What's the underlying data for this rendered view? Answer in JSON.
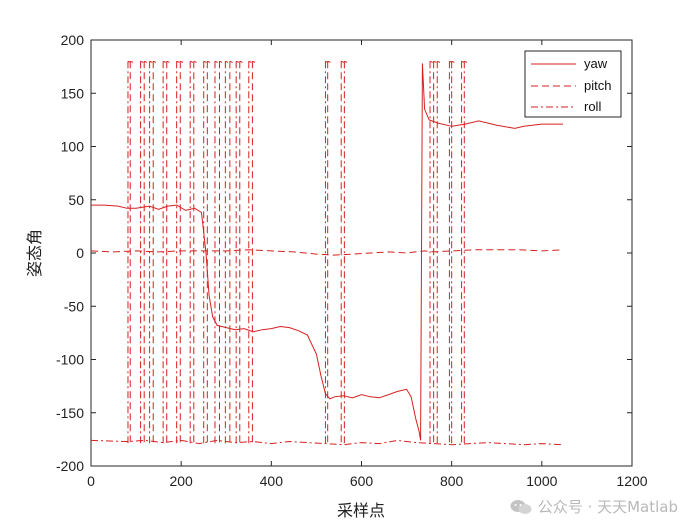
{
  "chart_data": {
    "type": "line",
    "title": "",
    "xlabel": "采样点",
    "ylabel": "姿态角",
    "xlim": [
      0,
      1200
    ],
    "ylim": [
      -200,
      200
    ],
    "xticks": [
      0,
      200,
      400,
      600,
      800,
      1000,
      1200
    ],
    "yticks": [
      -200,
      -150,
      -100,
      -50,
      0,
      50,
      100,
      150,
      200
    ],
    "grid": false,
    "legend_position": "top-right",
    "line_color": "#d62020",
    "series": [
      {
        "name": "yaw",
        "style": "solid",
        "x": [
          0,
          30,
          60,
          80,
          100,
          130,
          150,
          170,
          190,
          210,
          230,
          245,
          255,
          262,
          270,
          280,
          300,
          320,
          340,
          360,
          380,
          400,
          420,
          440,
          460,
          480,
          500,
          510,
          520,
          530,
          540,
          560,
          580,
          600,
          620,
          640,
          660,
          680,
          700,
          710,
          720,
          728,
          731,
          733,
          735,
          740,
          750,
          770,
          800,
          830,
          860,
          900,
          940,
          960,
          1000,
          1047
        ],
        "y": [
          45,
          45,
          44,
          42,
          42,
          44,
          41,
          44,
          45,
          40,
          42,
          38,
          0,
          -40,
          -60,
          -68,
          -70,
          -72,
          -71,
          -74,
          -72,
          -71,
          -69,
          -70,
          -73,
          -77,
          -95,
          -115,
          -132,
          -137,
          -135,
          -134,
          -136,
          -133,
          -135,
          -136,
          -133,
          -130,
          -128,
          -135,
          -155,
          -168,
          -176,
          0,
          178,
          135,
          125,
          122,
          119,
          121,
          124,
          120,
          117,
          119,
          121,
          121
        ]
      },
      {
        "name": "pitch",
        "style": "dashed",
        "x": [
          0,
          50,
          100,
          150,
          200,
          250,
          300,
          350,
          400,
          450,
          500,
          540,
          580,
          620,
          660,
          700,
          720,
          740,
          760,
          800,
          850,
          900,
          950,
          1000,
          1047
        ],
        "y": [
          2,
          1,
          2,
          1,
          2,
          2,
          2,
          3,
          2,
          1,
          -1,
          -2,
          -1,
          0,
          1,
          0,
          1,
          2,
          1,
          2,
          3,
          3,
          3,
          2,
          3
        ]
      },
      {
        "name": "roll",
        "style": "dashdot",
        "x": [
          0,
          80,
          120,
          160,
          200,
          240,
          280,
          320,
          360,
          400,
          440,
          480,
          520,
          560,
          600,
          640,
          680,
          720,
          760,
          800,
          840,
          880,
          920,
          960,
          1000,
          1047
        ],
        "y": [
          -176,
          -177,
          -176,
          -178,
          -176,
          -179,
          -176,
          -178,
          -177,
          -179,
          -177,
          -178,
          -179,
          -180,
          -178,
          -179,
          -176,
          -178,
          -179,
          -180,
          -179,
          -178,
          -179,
          -180,
          -179,
          -180
        ]
      }
    ],
    "wrap_jumps": [
      {
        "x": 82,
        "series": "roll"
      },
      {
        "x": 87,
        "series": "pitch"
      },
      {
        "x": 110,
        "series": "roll"
      },
      {
        "x": 118,
        "series": "pitch"
      },
      {
        "x": 130,
        "series": "roll"
      },
      {
        "x": 138,
        "series": "pitch"
      },
      {
        "x": 160,
        "series": "roll"
      },
      {
        "x": 168,
        "series": "pitch"
      },
      {
        "x": 190,
        "series": "roll"
      },
      {
        "x": 198,
        "series": "pitch"
      },
      {
        "x": 220,
        "series": "roll"
      },
      {
        "x": 228,
        "series": "pitch"
      },
      {
        "x": 250,
        "series": "roll"
      },
      {
        "x": 258,
        "series": "pitch"
      },
      {
        "x": 275,
        "series": "roll"
      },
      {
        "x": 285,
        "series": "pitch"
      },
      {
        "x": 298,
        "series": "roll"
      },
      {
        "x": 308,
        "series": "pitch"
      },
      {
        "x": 322,
        "series": "roll"
      },
      {
        "x": 330,
        "series": "pitch"
      },
      {
        "x": 350,
        "series": "roll"
      },
      {
        "x": 358,
        "series": "pitch"
      },
      {
        "x": 520,
        "series": "roll"
      },
      {
        "x": 525,
        "series": "pitch"
      },
      {
        "x": 555,
        "series": "pitch"
      },
      {
        "x": 562,
        "series": "roll"
      },
      {
        "x": 752,
        "series": "roll"
      },
      {
        "x": 760,
        "series": "pitch"
      },
      {
        "x": 768,
        "series": "roll"
      },
      {
        "x": 795,
        "series": "pitch"
      },
      {
        "x": 800,
        "series": "roll"
      },
      {
        "x": 822,
        "series": "pitch"
      },
      {
        "x": 828,
        "series": "roll"
      }
    ]
  },
  "watermark": {
    "text": "公众号 · 天天Matlab",
    "icon": "wechat-icon"
  }
}
